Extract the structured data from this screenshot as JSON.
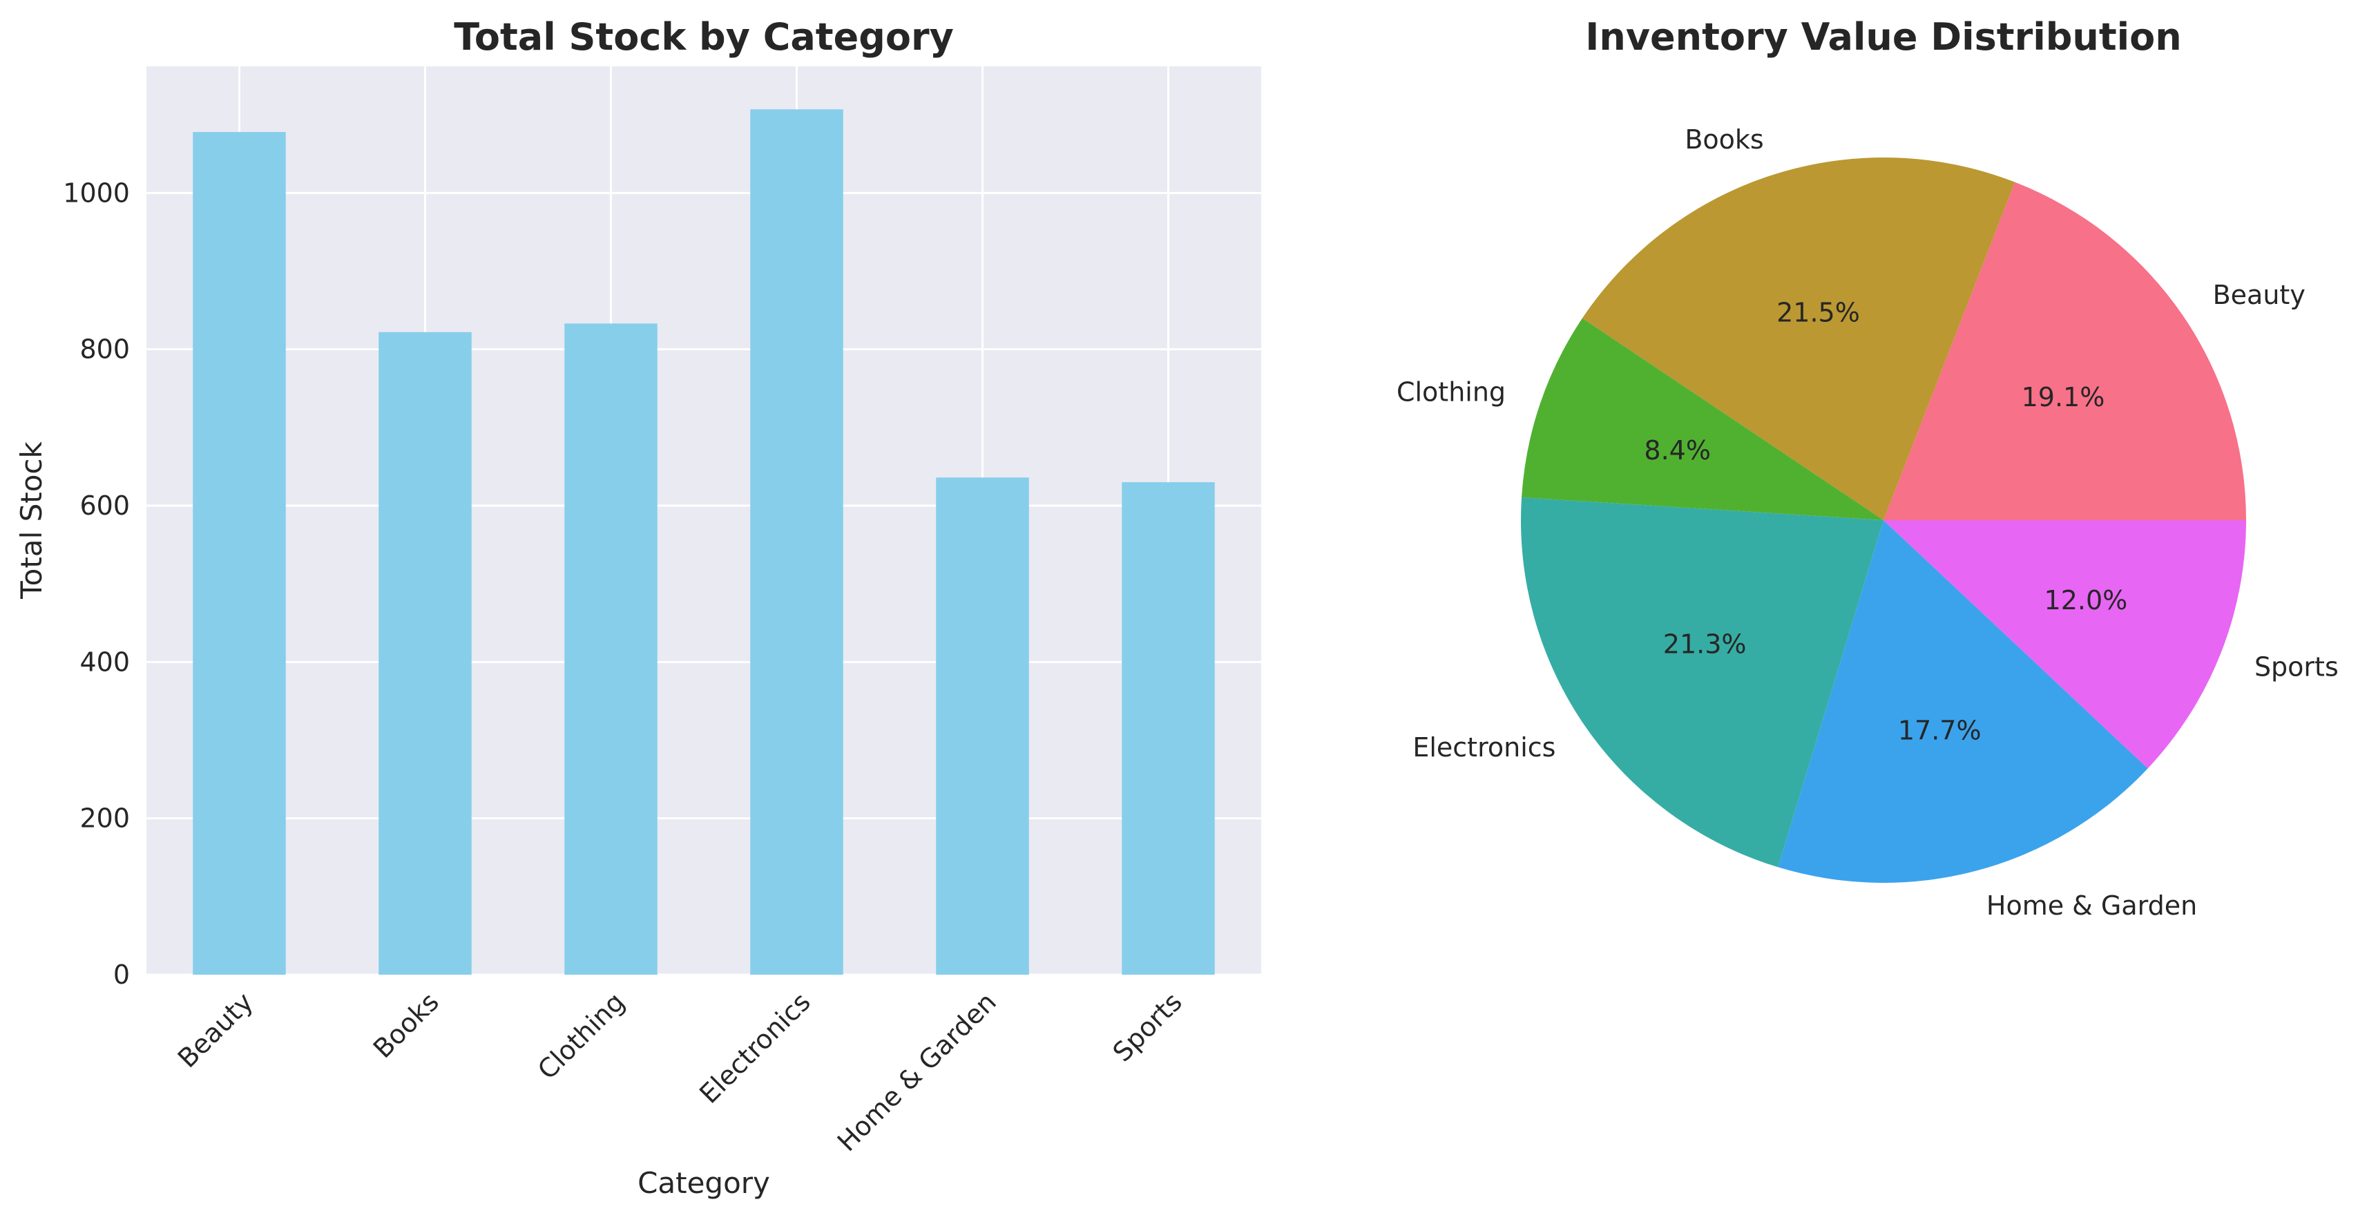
{
  "chart_data": [
    {
      "type": "bar",
      "title": "Total Stock by Category",
      "xlabel": "Category",
      "ylabel": "Total Stock",
      "categories": [
        "Beauty",
        "Books",
        "Clothing",
        "Electronics",
        "Home & Garden",
        "Sports"
      ],
      "values": [
        1078,
        822,
        833,
        1107,
        636,
        630
      ],
      "ylim": [
        0,
        1162
      ],
      "yticks": [
        0,
        200,
        400,
        600,
        800,
        1000
      ],
      "grid": true,
      "bar_color": "#87CEEB",
      "background": "#EAEAF2"
    },
    {
      "type": "pie",
      "title": "Inventory Value Distribution",
      "labels": [
        "Beauty",
        "Books",
        "Clothing",
        "Electronics",
        "Home & Garden",
        "Sports"
      ],
      "values": [
        19.1,
        21.5,
        8.4,
        21.3,
        17.7,
        12.0
      ],
      "pct_labels": [
        "19.1%",
        "21.5%",
        "8.4%",
        "21.3%",
        "17.7%",
        "12.0%"
      ],
      "colors": [
        "#F77189",
        "#BB9832",
        "#50B131",
        "#36ADA4",
        "#3BA3EC",
        "#E866F4"
      ]
    }
  ]
}
